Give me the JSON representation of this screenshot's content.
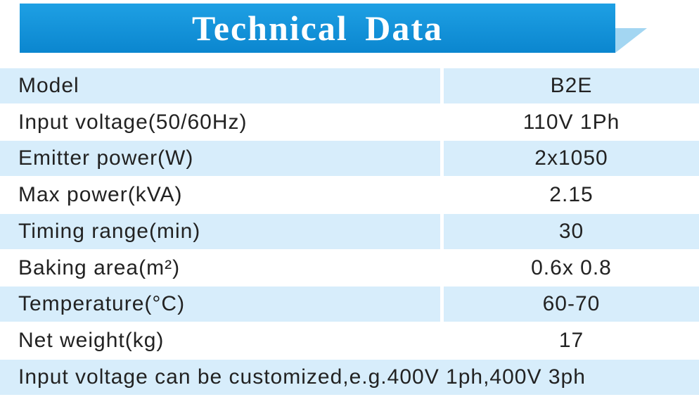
{
  "header": {
    "title": "Technical Data"
  },
  "table": {
    "rows": [
      [
        "Model",
        "B2E"
      ],
      [
        "Input voltage(50/60Hz)",
        "110V 1Ph"
      ],
      [
        "Emitter power(W)",
        "2x1050"
      ],
      [
        "Max power(kVA)",
        "2.15"
      ],
      [
        "Timing range(min)",
        "30"
      ],
      [
        "Baking area(m²)",
        "0.6x 0.8"
      ],
      [
        "Temperature(°C)",
        "60-70"
      ],
      [
        "Net weight(kg)",
        "17"
      ]
    ],
    "note": "Input voltage can be customized,e.g.400V 1ph,400V 3ph"
  }
}
